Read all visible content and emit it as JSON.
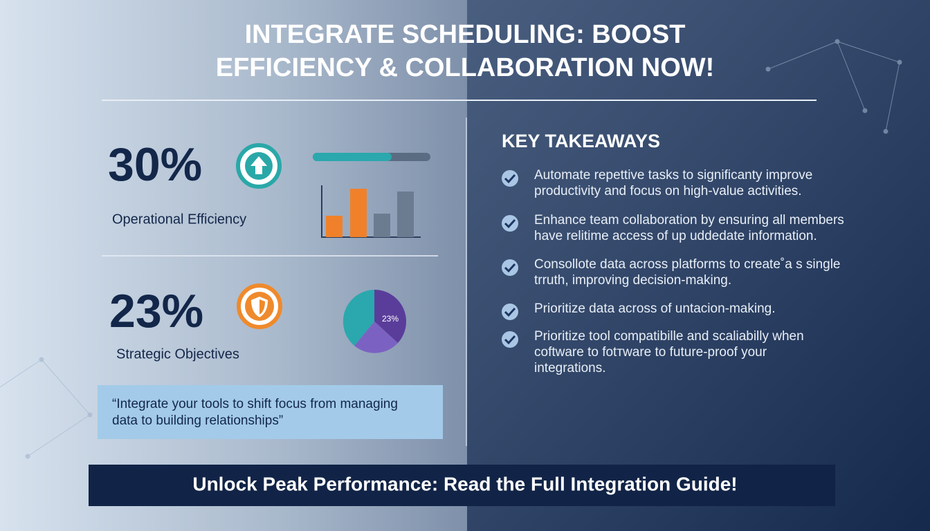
{
  "header": {
    "title_lines": [
      "INTEGRATE SCHEDULING: BOOST",
      "EFFICIENCY & COLLABORATION NOW!"
    ]
  },
  "stats": [
    {
      "value": "30%",
      "label": "Operational Efficiency"
    },
    {
      "value": "23%",
      "label": "Strategic Objectives",
      "chart_label": "23%"
    }
  ],
  "quote": {
    "lines": [
      "“Integrate your tools to shift focus from managing",
      "data to building relationships”"
    ]
  },
  "takeaways": {
    "title": "KEY TAKEAWAYS",
    "items": [
      [
        "Automate repettive tasks to significanty improve",
        "productivity and focus on high-value activities."
      ],
      [
        "Enhance team collaboration by ensuring all members",
        "have relitime access of up uddedate information."
      ],
      [
        "Consollote data across platforms to create˚a s single",
        "trruth, improving decision-making."
      ],
      [
        "Prioritize data across of untacion-making."
      ],
      [
        "Prioritize tool compatibille and scaliabilly when",
        "coftware to fotтware to future-proof your",
        "integrations."
      ]
    ]
  },
  "cta": "Unlock Peak Performance: Read the Full Integration Guide!"
}
